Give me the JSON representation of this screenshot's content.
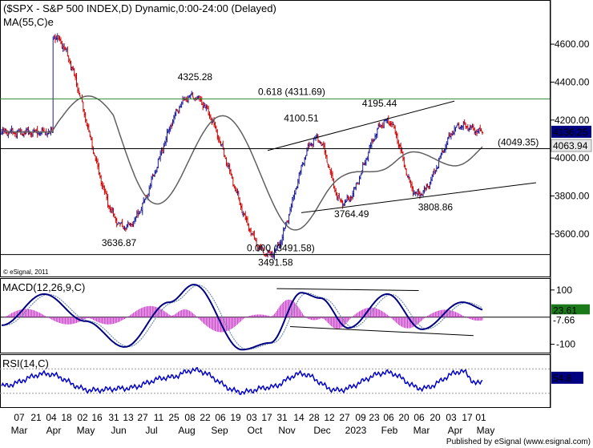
{
  "header": {
    "title": "($SPX - S&P 500 INDEX,D) Dynamic,0:00-24:00 (Delayed)",
    "ma_label": "MA(55,C)e",
    "copyright": "© eSignal, 2011",
    "macd_label": "MACD(12,26,9,C)",
    "rsi_label": "RSI(14,C)",
    "footer": "Published by eSignal (www.esignal.com)"
  },
  "colors": {
    "up": "#1a1a9a",
    "down": "#cc0000",
    "ma": "#606060",
    "fib": "#2e8b2e",
    "macd": "#000080",
    "signal": "#6e8fb0",
    "hist": "#cc44cc",
    "rsi": "#0000cc",
    "price_tag": "#000080"
  },
  "chart_data": [
    {
      "type": "candlestick",
      "name": "price",
      "ylim": [
        3380,
        4820
      ],
      "y_ticks": [
        3600,
        3800,
        4000,
        4200,
        4400,
        4600
      ],
      "y_tick_labels": [
        "3600.00",
        "3800.00",
        "4000.00",
        "4200.00",
        "4400.00",
        "4600.00"
      ],
      "last_price": 4136.25,
      "last_price_label": "4136.25",
      "level_label": "4063.94",
      "key_points": [
        {
          "bar": 46,
          "value": 4637.3
        },
        {
          "bar": 110,
          "value": 3636.87
        },
        {
          "bar": 170,
          "value": 4325.28
        },
        {
          "bar": 240,
          "value": 3491.58
        },
        {
          "bar": 282,
          "value": 4100.51
        },
        {
          "bar": 305,
          "value": 3764.49
        },
        {
          "bar": 345,
          "value": 4195.44
        },
        {
          "bar": 372,
          "value": 3808.86
        },
        {
          "bar": 411,
          "value": 4170.0
        },
        {
          "bar": 430,
          "value": 4136.25
        }
      ],
      "horizontal_levels": [
        {
          "value": 4311.69,
          "label": "0.618 (4311.69)",
          "color": "fib"
        },
        {
          "value": 4049.35,
          "label": "(4049.35)",
          "color": "black"
        },
        {
          "value": 3491.58,
          "label": "0.000 (3491.58)",
          "color": "black"
        }
      ],
      "trendlines": [
        {
          "from": {
            "bar": 238,
            "value": 4040
          },
          "to": {
            "bar": 405,
            "value": 4300
          }
        },
        {
          "from": {
            "bar": 268,
            "value": 3712
          },
          "to": {
            "bar": 478,
            "value": 3870
          }
        }
      ],
      "annotations": [
        {
          "text": "4325.28",
          "bar": 173,
          "value": 4325.28
        },
        {
          "text": "3636.87",
          "bar": 105,
          "value": 3636.87
        },
        {
          "text": "3491.58",
          "bar": 245,
          "value": 3491.58
        },
        {
          "text": "4100.51",
          "bar": 268,
          "value": 4100.51
        },
        {
          "text": "4195.44",
          "bar": 338,
          "value": 4195.44
        },
        {
          "text": "3764.49",
          "bar": 313,
          "value": 3764.49
        },
        {
          "text": "3808.86",
          "bar": 388,
          "value": 3808.86
        }
      ]
    },
    {
      "type": "line",
      "name": "MACD(12,26,9,C)",
      "ylim": [
        -125,
        135
      ],
      "y_ticks": [
        100,
        -100
      ],
      "y_tick_labels": [
        "100",
        "-100"
      ],
      "last_macd": 23.61,
      "last_macd_label": "23.61",
      "last_signal": -7.66,
      "last_signal_label": "-7.66",
      "key_points": [
        {
          "bar": 0,
          "value": -30
        },
        {
          "bar": 38,
          "value": 85
        },
        {
          "bar": 75,
          "value": -15
        },
        {
          "bar": 110,
          "value": -110
        },
        {
          "bar": 150,
          "value": 55
        },
        {
          "bar": 172,
          "value": 120
        },
        {
          "bar": 215,
          "value": -120
        },
        {
          "bar": 240,
          "value": -95
        },
        {
          "bar": 268,
          "value": 90
        },
        {
          "bar": 285,
          "value": 70
        },
        {
          "bar": 310,
          "value": -40
        },
        {
          "bar": 345,
          "value": 85
        },
        {
          "bar": 376,
          "value": -45
        },
        {
          "bar": 412,
          "value": 55
        },
        {
          "bar": 435,
          "value": 23.61
        }
      ],
      "trendlines": [
        {
          "from": {
            "bar": 246,
            "value": 105
          },
          "to": {
            "bar": 373,
            "value": 98
          }
        },
        {
          "from": {
            "bar": 258,
            "value": -35
          },
          "to": {
            "bar": 422,
            "value": -68
          }
        }
      ]
    },
    {
      "type": "line",
      "name": "RSI(14,C)",
      "ylim": [
        10,
        90
      ],
      "reference_levels": [
        30,
        70
      ],
      "last_rsi": 54.8,
      "last_rsi_label": "54.8",
      "key_points": [
        {
          "bar": 0,
          "value": 42
        },
        {
          "bar": 40,
          "value": 62
        },
        {
          "bar": 80,
          "value": 35
        },
        {
          "bar": 110,
          "value": 38
        },
        {
          "bar": 150,
          "value": 56
        },
        {
          "bar": 172,
          "value": 68
        },
        {
          "bar": 215,
          "value": 32
        },
        {
          "bar": 240,
          "value": 40
        },
        {
          "bar": 268,
          "value": 62
        },
        {
          "bar": 300,
          "value": 35
        },
        {
          "bar": 345,
          "value": 64
        },
        {
          "bar": 376,
          "value": 38
        },
        {
          "bar": 412,
          "value": 66
        },
        {
          "bar": 425,
          "value": 46
        },
        {
          "bar": 435,
          "value": 54.8
        }
      ]
    }
  ],
  "x_axis": {
    "total_bars": 440,
    "day_ticks": [
      {
        "bar": 20,
        "label": "07"
      },
      {
        "bar": 40,
        "label": "21"
      },
      {
        "bar": 62,
        "label": "04"
      },
      {
        "bar": 78,
        "label": "18"
      },
      {
        "bar": 100,
        "label": "02"
      },
      {
        "bar": 120,
        "label": "16"
      },
      {
        "bar": 140,
        "label": "31"
      },
      {
        "bar": 160,
        "label": "13"
      },
      {
        "bar": 178,
        "label": "27"
      },
      {
        "bar": 198,
        "label": "11"
      },
      {
        "bar": 218,
        "label": "25"
      },
      {
        "bar": 238,
        "label": "08"
      },
      {
        "bar": 258,
        "label": "22"
      },
      {
        "bar": 278,
        "label": "06"
      },
      {
        "bar": 298,
        "label": "19"
      },
      {
        "bar": 318,
        "label": "03"
      },
      {
        "bar": 338,
        "label": "17"
      },
      {
        "bar": 358,
        "label": "31"
      },
      {
        "bar": 378,
        "label": "14"
      },
      {
        "bar": 398,
        "label": "28"
      },
      {
        "bar": 418,
        "label": "12"
      },
      {
        "bar": 436,
        "label": "27"
      },
      {
        "bar": 456,
        "label": "09"
      },
      {
        "bar": 474,
        "label": "23"
      },
      {
        "bar": 494,
        "label": "06"
      },
      {
        "bar": 512,
        "label": "20"
      },
      {
        "bar": 532,
        "label": "06"
      },
      {
        "bar": 552,
        "label": "20"
      },
      {
        "bar": 572,
        "label": "03"
      },
      {
        "bar": 590,
        "label": "17"
      },
      {
        "bar": 606,
        "label": "01"
      }
    ],
    "month_ticks": [
      {
        "bar": 20,
        "label": "Mar"
      },
      {
        "bar": 70,
        "label": "Apr"
      },
      {
        "bar": 112,
        "label": "May"
      },
      {
        "bar": 152,
        "label": "Jun"
      },
      {
        "bar": 192,
        "label": "Jul"
      },
      {
        "bar": 236,
        "label": "Aug"
      },
      {
        "bar": 280,
        "label": "Sep"
      },
      {
        "bar": 318,
        "label": "Oct"
      },
      {
        "bar": 360,
        "label": "Nov"
      },
      {
        "bar": 404,
        "label": "Dec"
      },
      {
        "bar": 446,
        "label": "2023"
      },
      {
        "bar": 486,
        "label": "Feb"
      },
      {
        "bar": 526,
        "label": "Mar"
      },
      {
        "bar": 570,
        "label": "Apr"
      },
      {
        "bar": 606,
        "label": "May"
      }
    ]
  }
}
